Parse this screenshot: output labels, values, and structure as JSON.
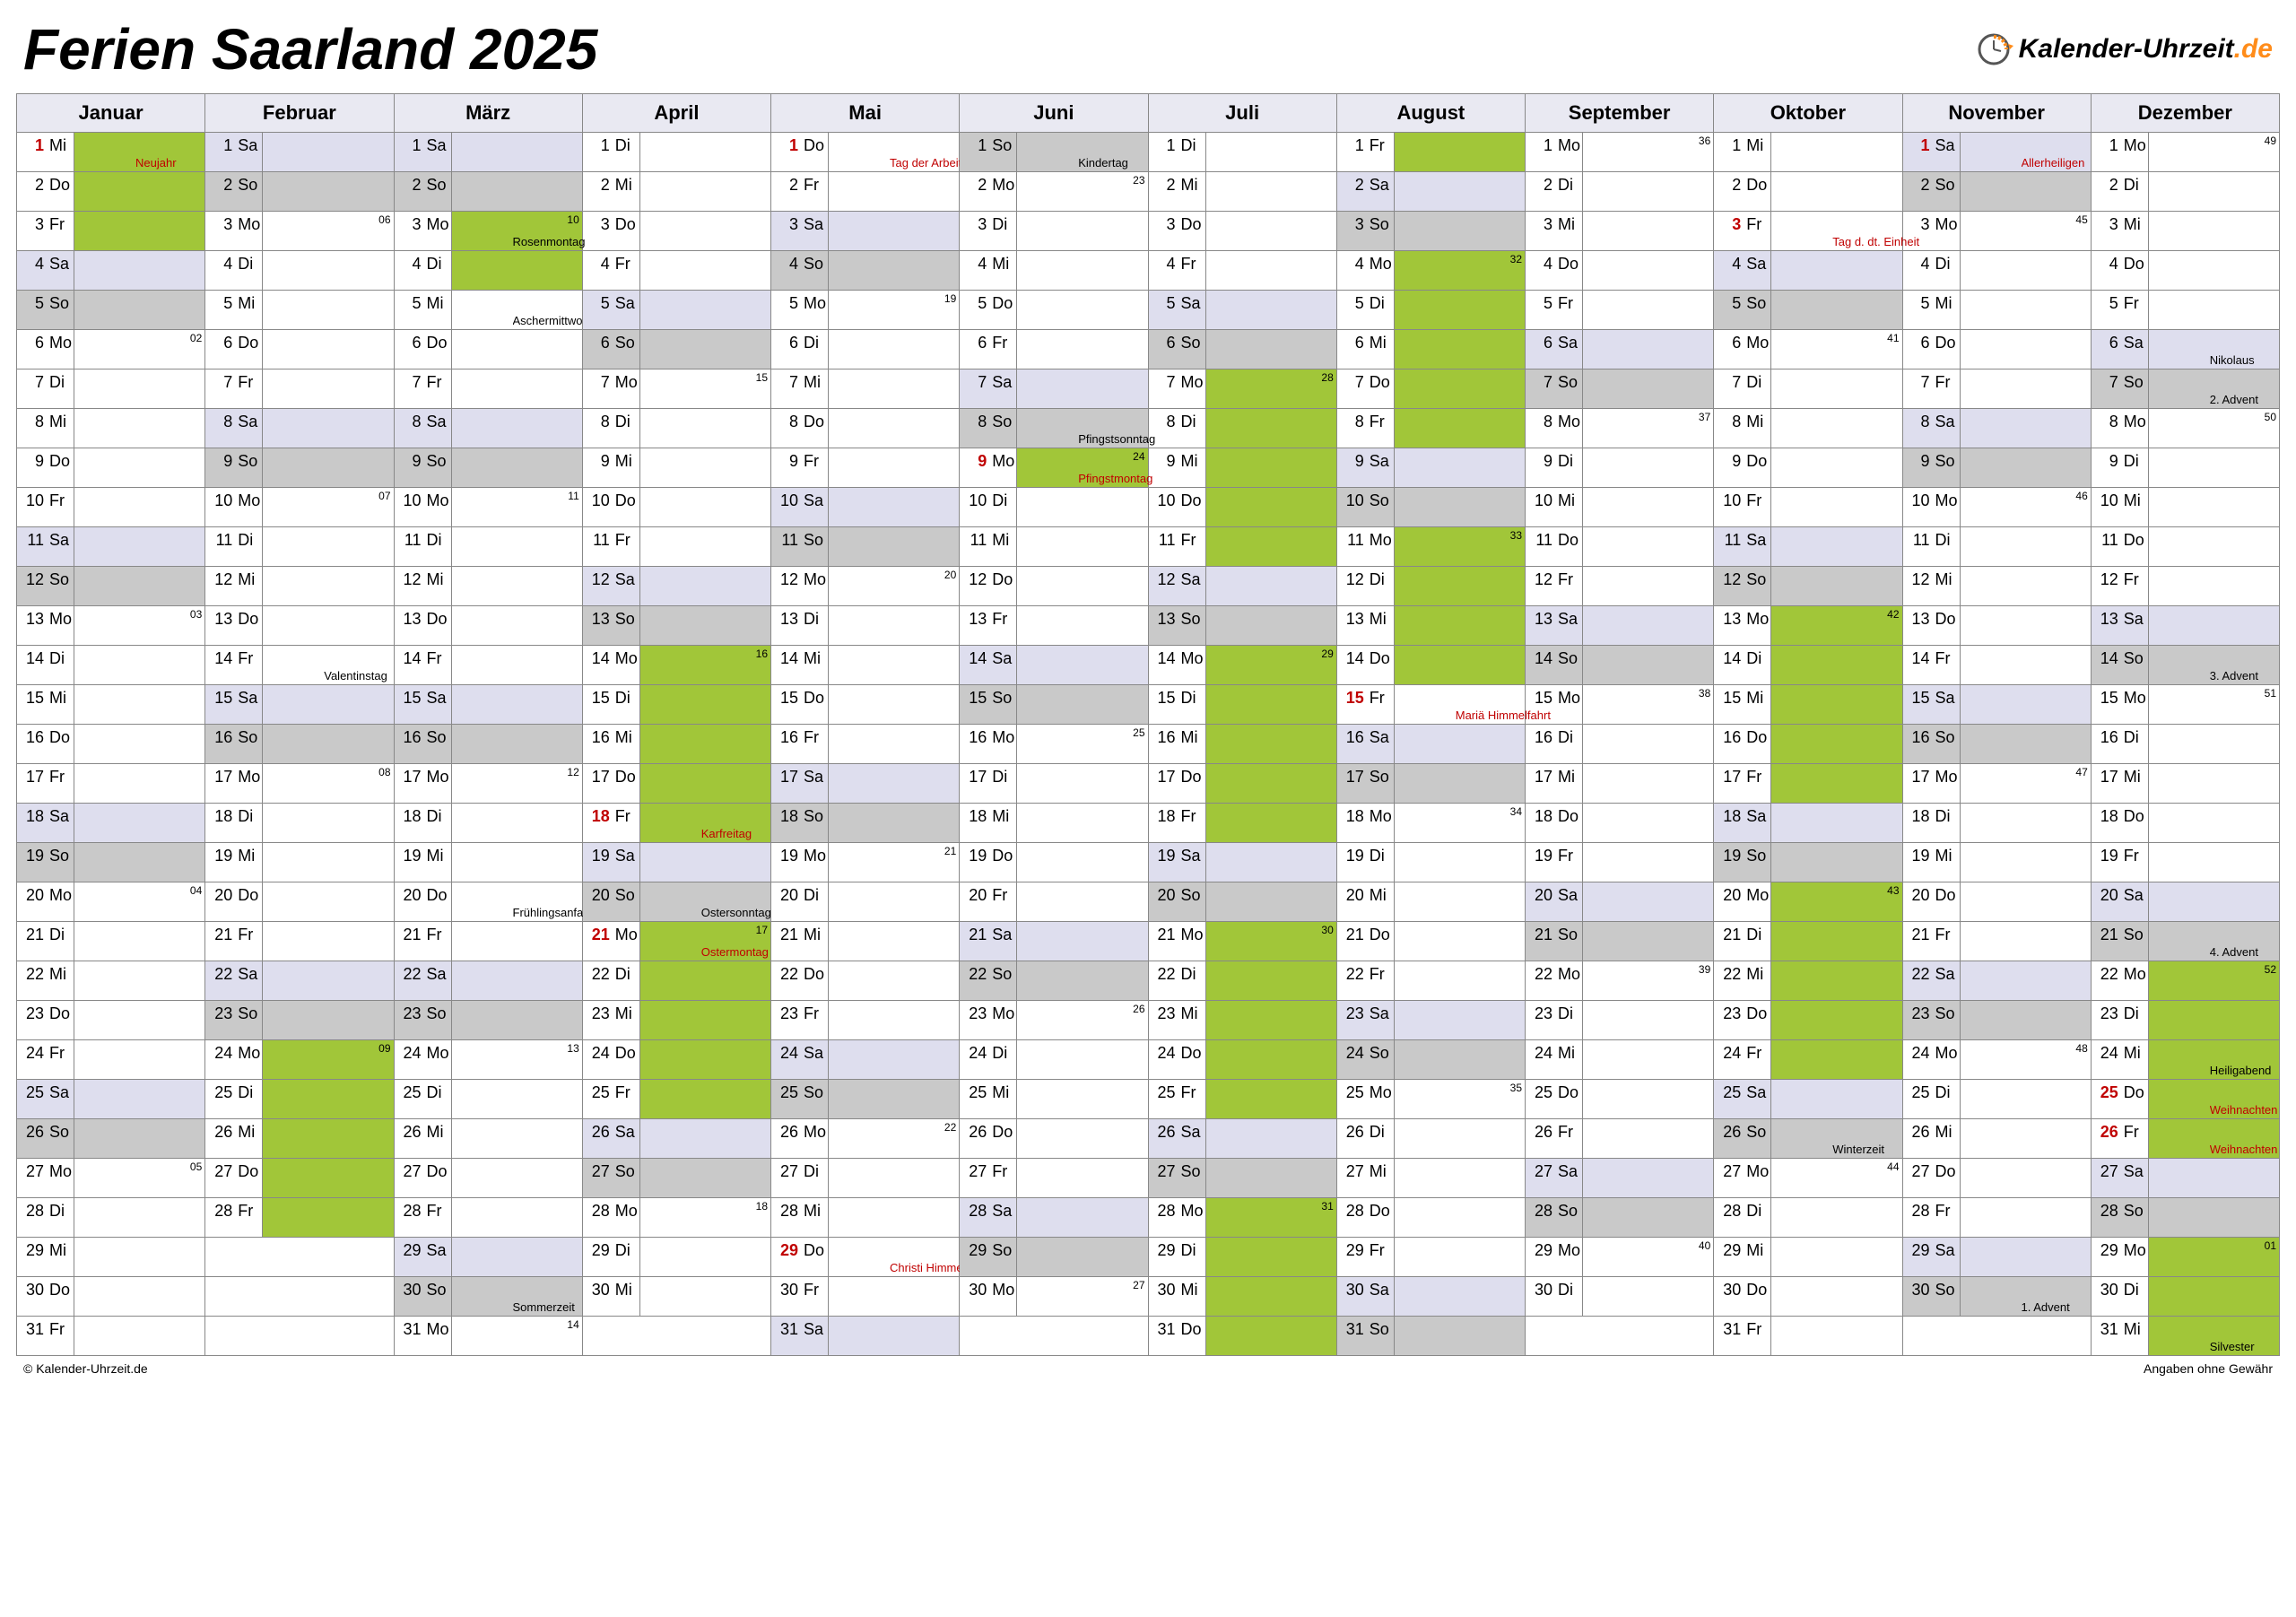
{
  "title": "Ferien Saarland 2025",
  "logo_text_1": "Kalender-Uhrzeit",
  "logo_text_2": ".de",
  "footer_left": "© Kalender-Uhrzeit.de",
  "footer_right": "Angaben ohne Gewähr",
  "colors": {
    "weekend_sun": "#c9c9c9",
    "weekend_sat": "#dedeee",
    "holiday": "#a1c639",
    "header_bg": "#e9e9f2",
    "border": "#888888",
    "text_red": "#c00000",
    "logo_orange": "#ff8c1a"
  },
  "months": [
    "Januar",
    "Februar",
    "März",
    "April",
    "Mai",
    "Juni",
    "Juli",
    "August",
    "September",
    "Oktober",
    "November",
    "Dezember"
  ],
  "month_lengths": [
    31,
    28,
    31,
    30,
    31,
    30,
    31,
    31,
    30,
    31,
    30,
    31
  ],
  "first_dow": [
    2,
    5,
    5,
    1,
    3,
    6,
    1,
    4,
    0,
    2,
    5,
    0
  ],
  "dow_labels": [
    "Mo",
    "Di",
    "Mi",
    "Do",
    "Fr",
    "Sa",
    "So"
  ],
  "holidays": {
    "0": [
      1,
      2,
      3
    ],
    "1": [
      24,
      25,
      26,
      27,
      28
    ],
    "2": [
      3,
      4
    ],
    "3": [
      14,
      15,
      16,
      17,
      18,
      21,
      22,
      23,
      24,
      25
    ],
    "5": [
      9
    ],
    "6": [
      7,
      8,
      9,
      10,
      11,
      14,
      15,
      16,
      17,
      18,
      21,
      22,
      23,
      24,
      25,
      28,
      29,
      30,
      31
    ],
    "7": [
      1,
      4,
      5,
      6,
      7,
      8,
      11,
      12,
      13,
      14
    ],
    "9": [
      13,
      14,
      15,
      16,
      17,
      20,
      21,
      22,
      23,
      24
    ],
    "11": [
      22,
      23,
      24,
      25,
      26,
      29,
      30,
      31
    ]
  },
  "red_days": {
    "0": [
      1
    ],
    "3": [
      18,
      21
    ],
    "4": [
      1,
      29
    ],
    "5": [
      9
    ],
    "7": [
      15
    ],
    "9": [
      3
    ],
    "10": [
      1
    ],
    "11": [
      25,
      26
    ]
  },
  "notes": {
    "0-1": {
      "t": "Neujahr",
      "red": true
    },
    "1-14": {
      "t": "Valentinstag"
    },
    "2-3": {
      "t": "Rosenmontag"
    },
    "2-5": {
      "t": "Aschermittwoch"
    },
    "2-20": {
      "t": "Frühlingsanfang"
    },
    "2-30": {
      "t": "Sommerzeit"
    },
    "3-18": {
      "t": "Karfreitag",
      "red": true
    },
    "3-20": {
      "t": "Ostersonntag"
    },
    "3-21": {
      "t": "Ostermontag",
      "red": true
    },
    "4-1": {
      "t": "Tag der Arbeit",
      "red": true
    },
    "4-29": {
      "t": "Christi Himmelfahrt",
      "red": true
    },
    "5-1": {
      "t": "Kindertag"
    },
    "5-8": {
      "t": "Pfingstsonntag"
    },
    "5-9": {
      "t": "Pfingstmontag",
      "red": true
    },
    "7-15": {
      "t": "Mariä Himmelfahrt",
      "red": true
    },
    "9-3": {
      "t": "Tag d. dt. Einheit",
      "red": true
    },
    "9-26": {
      "t": "Winterzeit"
    },
    "10-1": {
      "t": "Allerheiligen",
      "red": true
    },
    "10-30": {
      "t": "1. Advent"
    },
    "11-6": {
      "t": "Nikolaus"
    },
    "11-7": {
      "t": "2. Advent"
    },
    "11-14": {
      "t": "3. Advent"
    },
    "11-21": {
      "t": "4. Advent"
    },
    "11-24": {
      "t": "Heiligabend"
    },
    "11-25": {
      "t": "Weihnachten",
      "red": true
    },
    "11-26": {
      "t": "Weihnachten",
      "red": true
    },
    "11-31": {
      "t": "Silvester"
    }
  },
  "week_numbers": {
    "0-6": "02",
    "0-13": "03",
    "0-20": "04",
    "0-27": "05",
    "1-3": "06",
    "1-10": "07",
    "1-17": "08",
    "1-24": "09",
    "2-3": "10",
    "2-10": "11",
    "2-17": "12",
    "2-24": "13",
    "2-31": "14",
    "3-7": "15",
    "3-14": "16",
    "3-21": "17",
    "3-28": "18",
    "4-5": "19",
    "4-12": "20",
    "4-19": "21",
    "4-26": "22",
    "5-2": "23",
    "5-9": "24",
    "5-16": "25",
    "5-23": "26",
    "5-30": "27",
    "6-7": "28",
    "6-14": "29",
    "6-21": "30",
    "6-28": "31",
    "7-4": "32",
    "7-11": "33",
    "7-18": "34",
    "7-25": "35",
    "8-1": "36",
    "8-8": "37",
    "8-15": "38",
    "8-22": "39",
    "8-29": "40",
    "9-6": "41",
    "9-13": "42",
    "9-20": "43",
    "9-27": "44",
    "10-3": "45",
    "10-10": "46",
    "10-17": "47",
    "10-24": "48",
    "11-1": "49",
    "11-8": "50",
    "11-15": "51",
    "11-22": "52",
    "11-29": "01"
  }
}
